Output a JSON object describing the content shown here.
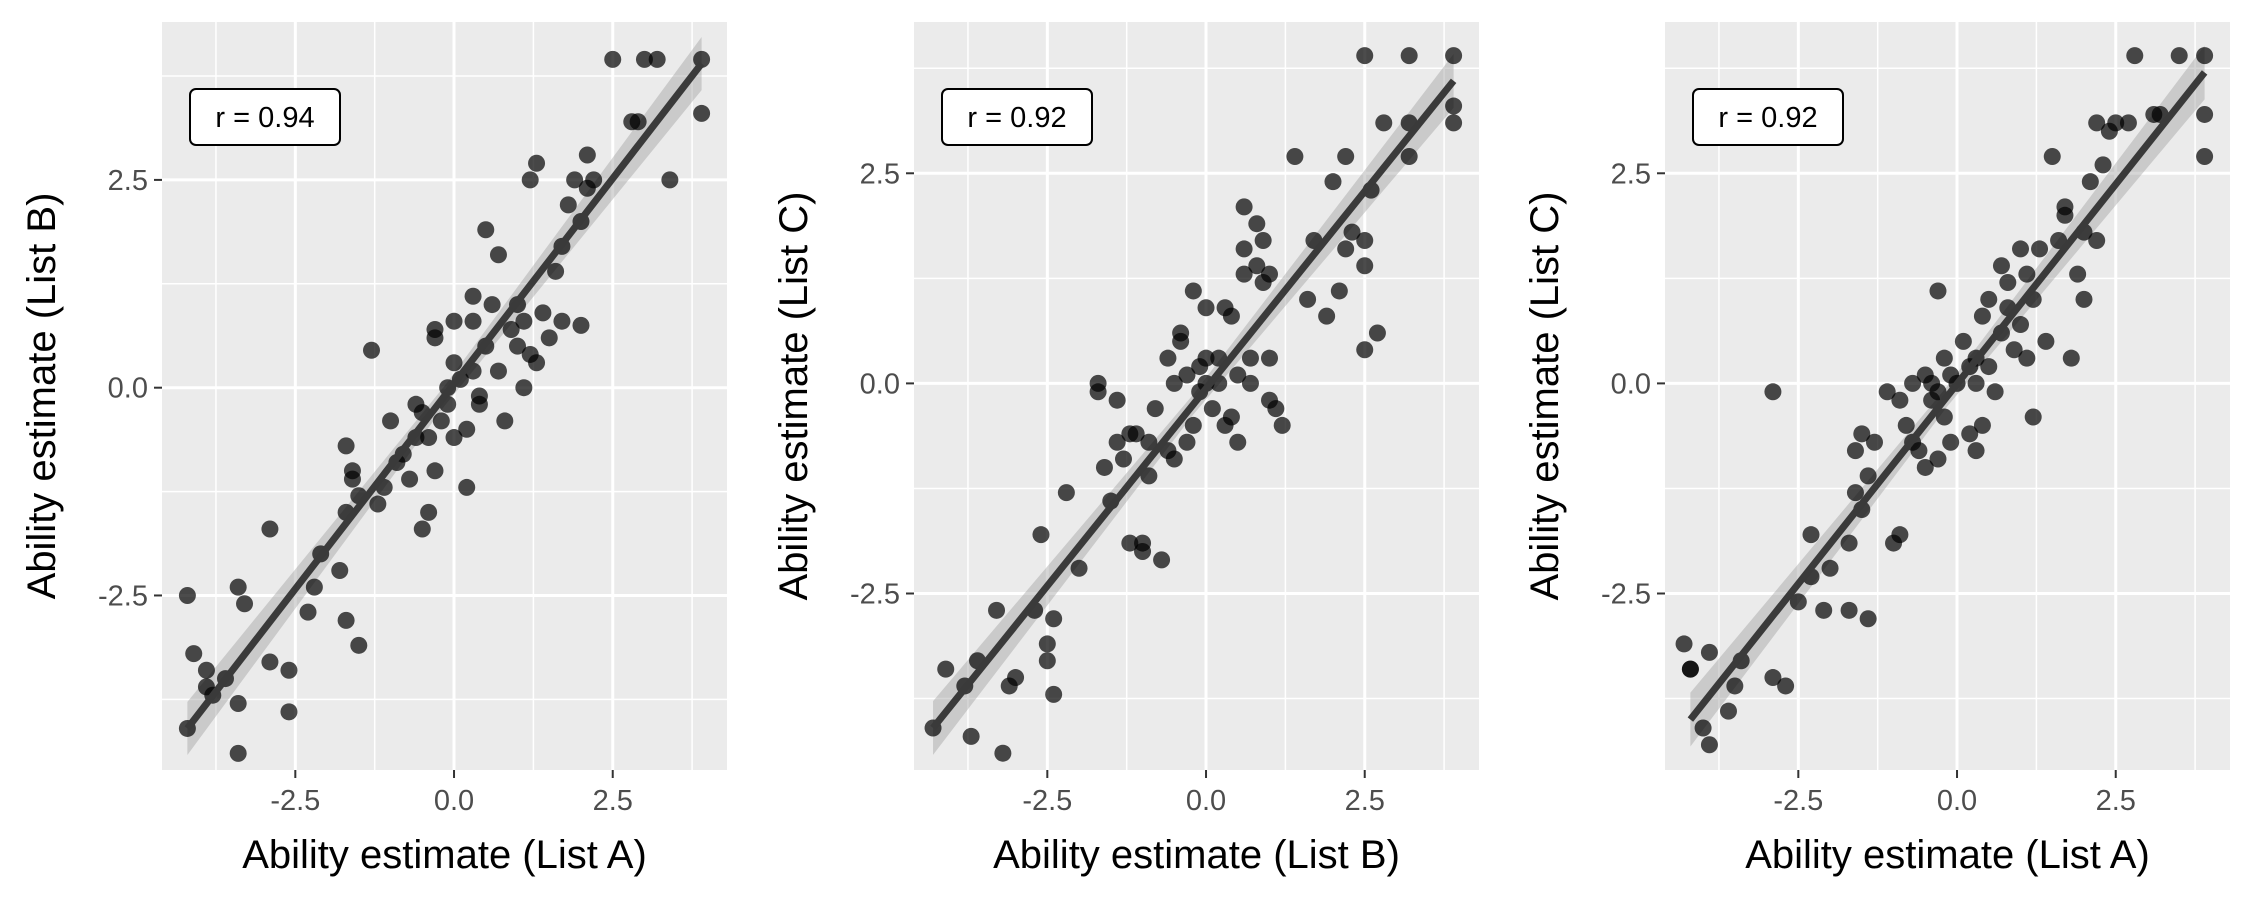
{
  "chart_data": [
    {
      "type": "scatter",
      "xlabel": "Ability estimate (List A)",
      "ylabel": "Ability estimate (List B)",
      "annotation": "r = 0.94",
      "xlim": [
        -4.6,
        4.3
      ],
      "ylim": [
        -4.6,
        4.4
      ],
      "xticks": [
        -2.5,
        0.0,
        2.5
      ],
      "xtick_labels": [
        "-2.5",
        "0.0",
        "2.5"
      ],
      "yticks": [
        -2.5,
        0.0,
        2.5
      ],
      "ytick_labels": [
        "-2.5",
        "0.0",
        "2.5"
      ],
      "grid": true,
      "fit": {
        "x": [
          -4.2,
          3.9
        ],
        "y": [
          -4.1,
          3.9
        ],
        "method": "linear regression with confidence band"
      },
      "points": [
        [
          -4.2,
          -4.1
        ],
        [
          -4.2,
          -2.5
        ],
        [
          -4.1,
          -3.2
        ],
        [
          -3.9,
          -3.4
        ],
        [
          -3.9,
          -3.6
        ],
        [
          -3.8,
          -3.7
        ],
        [
          -3.6,
          -3.5
        ],
        [
          -3.4,
          -4.4
        ],
        [
          -3.4,
          -3.8
        ],
        [
          -3.4,
          -2.4
        ],
        [
          -3.3,
          -2.6
        ],
        [
          -2.9,
          -1.7
        ],
        [
          -2.9,
          -3.3
        ],
        [
          -2.6,
          -3.9
        ],
        [
          -2.6,
          -3.4
        ],
        [
          -2.3,
          -2.7
        ],
        [
          -2.2,
          -2.4
        ],
        [
          -2.1,
          -2.0
        ],
        [
          -1.8,
          -2.2
        ],
        [
          -1.7,
          -2.8
        ],
        [
          -1.7,
          -1.5
        ],
        [
          -1.7,
          -0.7
        ],
        [
          -1.6,
          -1.0
        ],
        [
          -1.6,
          -1.1
        ],
        [
          -1.5,
          -1.3
        ],
        [
          -1.5,
          -3.1
        ],
        [
          -1.3,
          0.45
        ],
        [
          -1.2,
          -1.4
        ],
        [
          -1.1,
          -1.2
        ],
        [
          -1.0,
          -0.4
        ],
        [
          -0.9,
          -0.9
        ],
        [
          -0.8,
          -0.8
        ],
        [
          -0.7,
          -1.1
        ],
        [
          -0.6,
          -0.2
        ],
        [
          -0.6,
          -0.6
        ],
        [
          -0.5,
          -0.3
        ],
        [
          -0.5,
          -1.7
        ],
        [
          -0.4,
          -1.5
        ],
        [
          -0.4,
          -0.6
        ],
        [
          -0.3,
          -1.0
        ],
        [
          -0.3,
          0.6
        ],
        [
          -0.3,
          0.7
        ],
        [
          -0.2,
          -0.4
        ],
        [
          -0.1,
          -0.2
        ],
        [
          -0.1,
          0.0
        ],
        [
          0.0,
          -0.6
        ],
        [
          0.0,
          0.3
        ],
        [
          0.0,
          0.8
        ],
        [
          0.1,
          0.1
        ],
        [
          0.2,
          -0.5
        ],
        [
          0.2,
          -1.2
        ],
        [
          0.3,
          0.2
        ],
        [
          0.3,
          0.8
        ],
        [
          0.3,
          1.1
        ],
        [
          0.4,
          -0.1
        ],
        [
          0.4,
          -0.2
        ],
        [
          0.5,
          0.5
        ],
        [
          0.5,
          1.9
        ],
        [
          0.6,
          1.0
        ],
        [
          0.7,
          1.6
        ],
        [
          0.7,
          0.2
        ],
        [
          0.8,
          -0.4
        ],
        [
          0.9,
          0.7
        ],
        [
          1.0,
          1.0
        ],
        [
          1.0,
          0.5
        ],
        [
          1.1,
          0.0
        ],
        [
          1.1,
          0.8
        ],
        [
          1.2,
          0.4
        ],
        [
          1.2,
          2.5
        ],
        [
          1.3,
          2.7
        ],
        [
          1.3,
          0.3
        ],
        [
          1.4,
          0.9
        ],
        [
          1.5,
          0.6
        ],
        [
          1.6,
          1.4
        ],
        [
          1.7,
          0.8
        ],
        [
          1.7,
          1.7
        ],
        [
          1.8,
          2.2
        ],
        [
          1.9,
          2.5
        ],
        [
          2.0,
          2.0
        ],
        [
          2.0,
          0.75
        ],
        [
          2.1,
          2.4
        ],
        [
          2.1,
          2.8
        ],
        [
          2.2,
          2.5
        ],
        [
          2.5,
          3.95
        ],
        [
          2.8,
          3.2
        ],
        [
          2.9,
          3.2
        ],
        [
          3.0,
          3.95
        ],
        [
          3.2,
          3.95
        ],
        [
          3.4,
          2.5
        ],
        [
          3.9,
          3.95
        ],
        [
          3.9,
          3.3
        ]
      ]
    },
    {
      "type": "scatter",
      "xlabel": "Ability estimate (List B)",
      "ylabel": "Ability estimate (List C)",
      "annotation": "r = 0.92",
      "xlim": [
        -4.6,
        4.3
      ],
      "ylim": [
        -4.6,
        4.3
      ],
      "xticks": [
        -2.5,
        0.0,
        2.5
      ],
      "xtick_labels": [
        "-2.5",
        "0.0",
        "2.5"
      ],
      "yticks": [
        -2.5,
        0.0,
        2.5
      ],
      "ytick_labels": [
        "-2.5",
        "0.0",
        "2.5"
      ],
      "grid": true,
      "fit": {
        "x": [
          -4.3,
          3.9
        ],
        "y": [
          -4.1,
          3.6
        ],
        "method": "linear regression with confidence band"
      },
      "points": [
        [
          -4.3,
          -4.1
        ],
        [
          -4.1,
          -3.4
        ],
        [
          -3.8,
          -3.6
        ],
        [
          -3.7,
          -4.2
        ],
        [
          -3.6,
          -3.3
        ],
        [
          -3.3,
          -2.7
        ],
        [
          -3.2,
          -4.4
        ],
        [
          -3.1,
          -3.6
        ],
        [
          -3.0,
          -3.5
        ],
        [
          -2.7,
          -2.7
        ],
        [
          -2.6,
          -1.8
        ],
        [
          -2.5,
          -3.3
        ],
        [
          -2.5,
          -3.1
        ],
        [
          -2.4,
          -2.8
        ],
        [
          -2.4,
          -3.7
        ],
        [
          -2.2,
          -1.3
        ],
        [
          -2.0,
          -2.2
        ],
        [
          -1.7,
          0.0
        ],
        [
          -1.7,
          -0.1
        ],
        [
          -1.6,
          -1.0
        ],
        [
          -1.5,
          -1.4
        ],
        [
          -1.4,
          -0.7
        ],
        [
          -1.4,
          -0.2
        ],
        [
          -1.3,
          -0.9
        ],
        [
          -1.2,
          -0.6
        ],
        [
          -1.2,
          -1.9
        ],
        [
          -1.1,
          -0.6
        ],
        [
          -1.0,
          -1.9
        ],
        [
          -1.0,
          -2.0
        ],
        [
          -0.9,
          -1.1
        ],
        [
          -0.9,
          -0.7
        ],
        [
          -0.8,
          -0.3
        ],
        [
          -0.7,
          -2.1
        ],
        [
          -0.6,
          0.3
        ],
        [
          -0.6,
          -0.8
        ],
        [
          -0.5,
          0.0
        ],
        [
          -0.5,
          -0.9
        ],
        [
          -0.4,
          0.5
        ],
        [
          -0.4,
          0.6
        ],
        [
          -0.3,
          0.1
        ],
        [
          -0.3,
          -0.7
        ],
        [
          -0.2,
          1.1
        ],
        [
          -0.2,
          -0.5
        ],
        [
          -0.1,
          0.2
        ],
        [
          -0.1,
          -0.1
        ],
        [
          0.0,
          0.3
        ],
        [
          0.0,
          0.0
        ],
        [
          0.0,
          0.9
        ],
        [
          0.1,
          -0.3
        ],
        [
          0.2,
          0.3
        ],
        [
          0.2,
          0.0
        ],
        [
          0.3,
          0.9
        ],
        [
          0.3,
          -0.5
        ],
        [
          0.4,
          -0.4
        ],
        [
          0.4,
          0.8
        ],
        [
          0.5,
          0.1
        ],
        [
          0.5,
          -0.7
        ],
        [
          0.6,
          1.3
        ],
        [
          0.6,
          1.6
        ],
        [
          0.6,
          2.1
        ],
        [
          0.7,
          0.3
        ],
        [
          0.7,
          0.0
        ],
        [
          0.8,
          1.9
        ],
        [
          0.8,
          1.4
        ],
        [
          0.9,
          1.2
        ],
        [
          0.9,
          1.7
        ],
        [
          1.0,
          1.3
        ],
        [
          1.0,
          0.3
        ],
        [
          1.0,
          -0.2
        ],
        [
          1.1,
          -0.3
        ],
        [
          1.2,
          -0.5
        ],
        [
          1.4,
          2.7
        ],
        [
          1.6,
          1.0
        ],
        [
          1.7,
          1.7
        ],
        [
          1.9,
          0.8
        ],
        [
          2.0,
          2.4
        ],
        [
          2.1,
          1.1
        ],
        [
          2.2,
          1.6
        ],
        [
          2.2,
          2.7
        ],
        [
          2.3,
          1.8
        ],
        [
          2.5,
          1.7
        ],
        [
          2.5,
          0.4
        ],
        [
          2.5,
          1.4
        ],
        [
          2.6,
          2.3
        ],
        [
          2.7,
          0.6
        ],
        [
          2.8,
          3.1
        ],
        [
          3.2,
          3.1
        ],
        [
          3.2,
          2.7
        ],
        [
          3.2,
          3.9
        ],
        [
          2.5,
          3.9
        ],
        [
          3.9,
          3.9
        ],
        [
          3.9,
          3.3
        ],
        [
          3.9,
          3.1
        ]
      ]
    },
    {
      "type": "scatter",
      "xlabel": "Ability estimate (List A)",
      "ylabel": "Ability estimate (List C)",
      "annotation": "r = 0.92",
      "xlim": [
        -4.6,
        4.3
      ],
      "ylim": [
        -4.6,
        4.3
      ],
      "xticks": [
        -2.5,
        0.0,
        2.5
      ],
      "xtick_labels": [
        "-2.5",
        "0.0",
        "2.5"
      ],
      "yticks": [
        -2.5,
        0.0,
        2.5
      ],
      "ytick_labels": [
        "-2.5",
        "0.0",
        "2.5"
      ],
      "grid": true,
      "fit": {
        "x": [
          -4.2,
          3.9
        ],
        "y": [
          -4.0,
          3.7
        ],
        "method": "linear regression with confidence band"
      },
      "points": [
        [
          -4.3,
          -3.1
        ],
        [
          -4.2,
          -3.4
        ],
        [
          -4.2,
          -3.4
        ],
        [
          -4.0,
          -4.1
        ],
        [
          -3.9,
          -3.2
        ],
        [
          -3.9,
          -4.3
        ],
        [
          -3.6,
          -3.9
        ],
        [
          -3.5,
          -3.6
        ],
        [
          -3.4,
          -3.3
        ],
        [
          -2.9,
          -0.1
        ],
        [
          -2.9,
          -3.5
        ],
        [
          -2.7,
          -3.6
        ],
        [
          -2.5,
          -2.6
        ],
        [
          -2.3,
          -1.8
        ],
        [
          -2.3,
          -2.3
        ],
        [
          -2.1,
          -2.7
        ],
        [
          -2.0,
          -2.2
        ],
        [
          -1.7,
          -1.9
        ],
        [
          -1.7,
          -2.7
        ],
        [
          -1.6,
          -1.3
        ],
        [
          -1.6,
          -0.8
        ],
        [
          -1.5,
          -0.6
        ],
        [
          -1.5,
          -1.5
        ],
        [
          -1.4,
          -1.1
        ],
        [
          -1.4,
          -2.8
        ],
        [
          -1.3,
          -0.7
        ],
        [
          -1.1,
          -0.1
        ],
        [
          -1.0,
          -1.9
        ],
        [
          -0.9,
          -1.8
        ],
        [
          -0.9,
          -0.2
        ],
        [
          -0.8,
          -0.5
        ],
        [
          -0.7,
          0.0
        ],
        [
          -0.7,
          -0.7
        ],
        [
          -0.6,
          -0.8
        ],
        [
          -0.5,
          0.1
        ],
        [
          -0.5,
          -1.0
        ],
        [
          -0.4,
          -0.2
        ],
        [
          -0.4,
          0.0
        ],
        [
          -0.3,
          -0.1
        ],
        [
          -0.3,
          1.1
        ],
        [
          -0.3,
          -0.9
        ],
        [
          -0.2,
          -0.4
        ],
        [
          -0.2,
          0.3
        ],
        [
          -0.1,
          0.1
        ],
        [
          -0.1,
          -0.7
        ],
        [
          0.0,
          0.0
        ],
        [
          0.1,
          0.5
        ],
        [
          0.2,
          0.2
        ],
        [
          0.2,
          -0.6
        ],
        [
          0.3,
          -0.8
        ],
        [
          0.3,
          0.3
        ],
        [
          0.3,
          0.0
        ],
        [
          0.4,
          0.8
        ],
        [
          0.4,
          -0.5
        ],
        [
          0.5,
          1.0
        ],
        [
          0.5,
          0.2
        ],
        [
          0.6,
          -0.1
        ],
        [
          0.7,
          0.6
        ],
        [
          0.7,
          1.4
        ],
        [
          0.8,
          0.9
        ],
        [
          0.8,
          1.2
        ],
        [
          0.9,
          0.4
        ],
        [
          1.0,
          0.7
        ],
        [
          1.0,
          1.6
        ],
        [
          1.1,
          0.3
        ],
        [
          1.1,
          1.3
        ],
        [
          1.2,
          -0.4
        ],
        [
          1.2,
          1.0
        ],
        [
          1.3,
          1.6
        ],
        [
          1.4,
          0.5
        ],
        [
          1.5,
          2.7
        ],
        [
          1.6,
          1.7
        ],
        [
          1.7,
          2.1
        ],
        [
          1.7,
          2.0
        ],
        [
          1.8,
          0.3
        ],
        [
          1.9,
          1.3
        ],
        [
          2.0,
          1.0
        ],
        [
          2.0,
          1.8
        ],
        [
          2.1,
          2.4
        ],
        [
          2.2,
          1.7
        ],
        [
          2.2,
          3.1
        ],
        [
          2.3,
          2.6
        ],
        [
          2.4,
          3.0
        ],
        [
          2.5,
          3.1
        ],
        [
          2.7,
          3.1
        ],
        [
          2.8,
          3.9
        ],
        [
          3.1,
          3.2
        ],
        [
          3.2,
          3.2
        ],
        [
          3.5,
          3.9
        ],
        [
          3.9,
          3.9
        ],
        [
          3.9,
          3.2
        ],
        [
          3.9,
          2.7
        ]
      ]
    }
  ]
}
